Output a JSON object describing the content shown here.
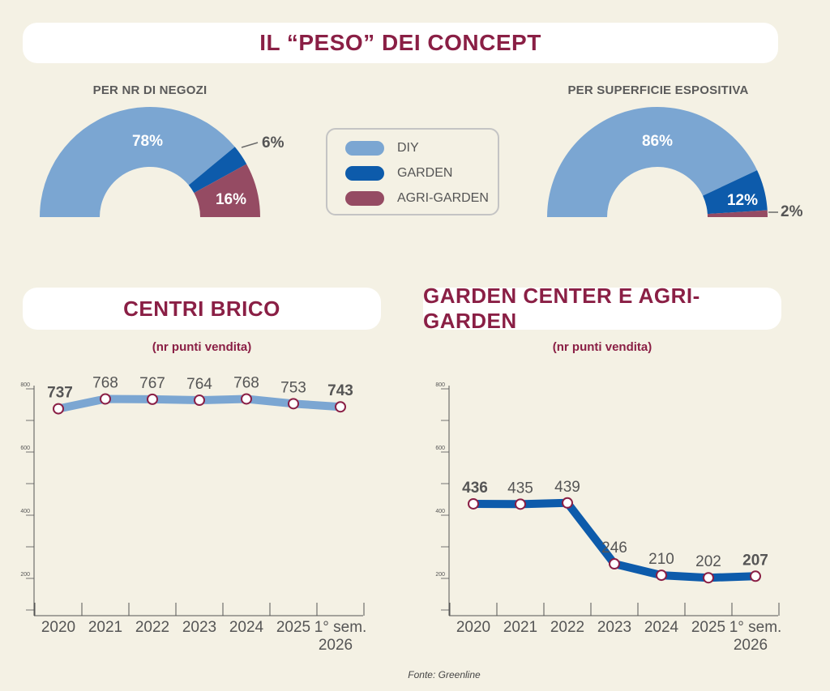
{
  "title": "IL “PESO” DEI CONCEPT",
  "legend": [
    {
      "label": "DIY",
      "color": "#7ba6d2"
    },
    {
      "label": "GARDEN",
      "color": "#0d5bab"
    },
    {
      "label": "AGRI-GARDEN",
      "color": "#954b63"
    }
  ],
  "source": "Fonte: Greenline",
  "chart_data": [
    {
      "type": "pie",
      "subtype": "half-donut",
      "title": "PER NR DI NEGOZI",
      "categories": [
        "DIY",
        "GARDEN",
        "AGRI-GARDEN"
      ],
      "values": [
        78,
        6,
        16
      ],
      "labels": [
        "78%",
        "6%",
        "16%"
      ],
      "colors": [
        "#7ba6d2",
        "#0d5bab",
        "#954b63"
      ]
    },
    {
      "type": "pie",
      "subtype": "half-donut",
      "title": "PER SUPERFICIE ESPOSITIVA",
      "categories": [
        "DIY",
        "GARDEN",
        "AGRI-GARDEN"
      ],
      "values": [
        86,
        12,
        2
      ],
      "labels": [
        "86%",
        "12%",
        "2%"
      ],
      "colors": [
        "#7ba6d2",
        "#0d5bab",
        "#954b63"
      ]
    },
    {
      "type": "line",
      "title": "CENTRI BRICO",
      "subtitle": "(nr punti vendita)",
      "categories": [
        "2020",
        "2021",
        "2022",
        "2023",
        "2024",
        "2025",
        "1° sem. 2026"
      ],
      "values": [
        737,
        768,
        767,
        764,
        768,
        753,
        743
      ],
      "bold_labels": [
        true,
        false,
        false,
        false,
        false,
        false,
        true
      ],
      "ylim": [
        100,
        800
      ],
      "yticks": [
        200,
        400,
        600,
        800
      ],
      "line_color": "#7ba6d2"
    },
    {
      "type": "line",
      "title": "GARDEN CENTER E AGRI-GARDEN",
      "subtitle": "(nr punti vendita)",
      "categories": [
        "2020",
        "2021",
        "2022",
        "2023",
        "2024",
        "2025",
        "1° sem. 2026"
      ],
      "values": [
        436,
        435,
        439,
        246,
        210,
        202,
        207
      ],
      "bold_labels": [
        true,
        false,
        false,
        false,
        false,
        false,
        true
      ],
      "ylim": [
        100,
        800
      ],
      "yticks": [
        200,
        400,
        600,
        800
      ],
      "line_color": "#0d5bab"
    }
  ]
}
